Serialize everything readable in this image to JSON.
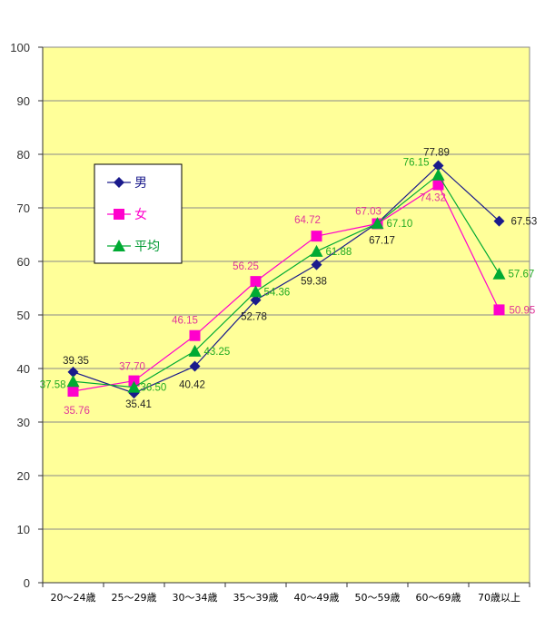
{
  "chart_data": {
    "type": "line",
    "categories": [
      "20～24歳",
      "25～29歳",
      "30～34歳",
      "35～39歳",
      "40～49歳",
      "50～59歳",
      "60～69歳",
      "70歳以上"
    ],
    "ylim": [
      0,
      100
    ],
    "yticks": [
      0,
      10,
      20,
      30,
      40,
      50,
      60,
      70,
      80,
      90,
      100
    ],
    "grid": true,
    "legend_position": "left",
    "plot_background": "#ffff99",
    "series": [
      {
        "name": "男",
        "marker": "diamond",
        "color": "#1a1a8c",
        "label_color": "#222222",
        "values": [
          39.35,
          35.41,
          40.42,
          52.78,
          59.38,
          67.17,
          77.89,
          67.53
        ],
        "labels": [
          "39.35",
          "35.41",
          "40.42",
          "52.78",
          "59.38",
          "67.17",
          "77.89",
          "67.53"
        ]
      },
      {
        "name": "女",
        "marker": "square",
        "color": "#ff00cc",
        "label_color": "#e0359a",
        "values": [
          35.76,
          37.7,
          46.15,
          56.25,
          64.72,
          67.03,
          74.32,
          50.95
        ],
        "labels": [
          "35.76",
          "37.70",
          "46.15",
          "56.25",
          "64.72",
          "67.03",
          "74.32",
          "50.95"
        ]
      },
      {
        "name": "平均",
        "marker": "triangle",
        "color": "#00aa33",
        "label_color": "#22aa22",
        "values": [
          37.58,
          36.5,
          43.25,
          54.36,
          61.88,
          67.1,
          76.15,
          57.67
        ],
        "labels": [
          "37.58",
          "36.50",
          "43.25",
          "54.36",
          "61.88",
          "67.10",
          "76.15",
          "57.67"
        ]
      }
    ]
  }
}
